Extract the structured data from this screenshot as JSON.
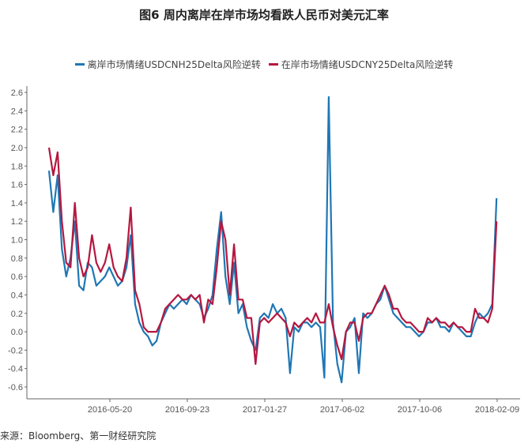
{
  "chart_data": {
    "type": "line",
    "title": "图6 周内离岸在岸市场均看跌人民币对美元汇率",
    "x_start": "2016-02-11",
    "step_days": 7,
    "x_ticks": [
      "2016-05-20",
      "2016-09-23",
      "2017-01-27",
      "2017-06-02",
      "2017-10-06",
      "2018-02-09"
    ],
    "y_ticks": [
      2.6,
      2.4,
      2.2,
      2.0,
      1.8,
      1.6,
      1.4,
      1.2,
      1.0,
      0.8,
      0.6,
      0.4,
      0.2,
      0.0,
      -0.2,
      -0.4,
      -0.6
    ],
    "ylim": [
      -0.6,
      2.6
    ],
    "legend_position": "top-center",
    "grid": false,
    "series": [
      {
        "name": "离岸市场情绪USDCNH25Delta风险逆转",
        "color": "#1f77b4",
        "values": [
          1.75,
          1.3,
          1.7,
          0.9,
          0.6,
          0.8,
          1.2,
          0.5,
          0.45,
          0.75,
          0.7,
          0.5,
          0.55,
          0.6,
          0.7,
          0.6,
          0.5,
          0.55,
          0.7,
          1.05,
          0.3,
          0.1,
          0.0,
          -0.05,
          -0.15,
          -0.1,
          0.1,
          0.2,
          0.3,
          0.25,
          0.3,
          0.35,
          0.3,
          0.4,
          0.35,
          0.3,
          0.15,
          0.25,
          0.4,
          0.9,
          1.3,
          0.6,
          0.3,
          0.75,
          0.2,
          0.3,
          0.05,
          -0.1,
          -0.2,
          0.15,
          0.2,
          0.15,
          0.3,
          0.2,
          0.25,
          0.15,
          -0.45,
          0.05,
          0.0,
          0.1,
          0.1,
          0.05,
          0.1,
          0.05,
          -0.5,
          2.55,
          0.1,
          -0.35,
          -0.55,
          0.0,
          0.05,
          0.15,
          -0.45,
          0.2,
          0.15,
          0.2,
          0.3,
          0.35,
          0.5,
          0.35,
          0.2,
          0.15,
          0.1,
          0.05,
          0.05,
          0.0,
          -0.05,
          0.0,
          0.1,
          0.1,
          0.15,
          0.05,
          0.05,
          0.0,
          0.1,
          0.05,
          0.0,
          -0.05,
          -0.05,
          0.1,
          0.2,
          0.15,
          0.2,
          0.3,
          1.45
        ]
      },
      {
        "name": "在岸市场情绪USDCNY25Delta风险逆转",
        "color": "#b5173f",
        "values": [
          2.0,
          1.7,
          1.95,
          1.2,
          0.75,
          0.7,
          1.4,
          0.8,
          0.6,
          0.7,
          1.05,
          0.75,
          0.65,
          0.75,
          0.95,
          0.7,
          0.6,
          0.55,
          0.8,
          1.35,
          0.45,
          0.3,
          0.05,
          0.0,
          0.0,
          0.0,
          0.1,
          0.25,
          0.3,
          0.35,
          0.4,
          0.35,
          0.35,
          0.4,
          0.35,
          0.4,
          0.1,
          0.35,
          0.3,
          0.7,
          1.2,
          1.0,
          0.4,
          0.95,
          0.35,
          0.35,
          0.15,
          0.15,
          -0.35,
          0.1,
          0.15,
          0.1,
          0.15,
          0.2,
          0.15,
          0.1,
          -0.05,
          0.1,
          0.05,
          0.1,
          0.15,
          0.1,
          0.2,
          0.1,
          0.1,
          0.3,
          0.05,
          -0.15,
          -0.3,
          0.0,
          0.1,
          0.1,
          -0.1,
          0.15,
          0.2,
          0.2,
          0.3,
          0.4,
          0.5,
          0.4,
          0.25,
          0.25,
          0.15,
          0.1,
          0.1,
          0.05,
          0.0,
          0.0,
          0.15,
          0.1,
          0.15,
          0.1,
          0.1,
          0.05,
          0.1,
          0.05,
          0.05,
          0.0,
          0.0,
          0.25,
          0.15,
          0.15,
          0.1,
          0.25,
          1.2
        ]
      }
    ]
  },
  "source": "来源：Bloomberg、第一财经研究院"
}
